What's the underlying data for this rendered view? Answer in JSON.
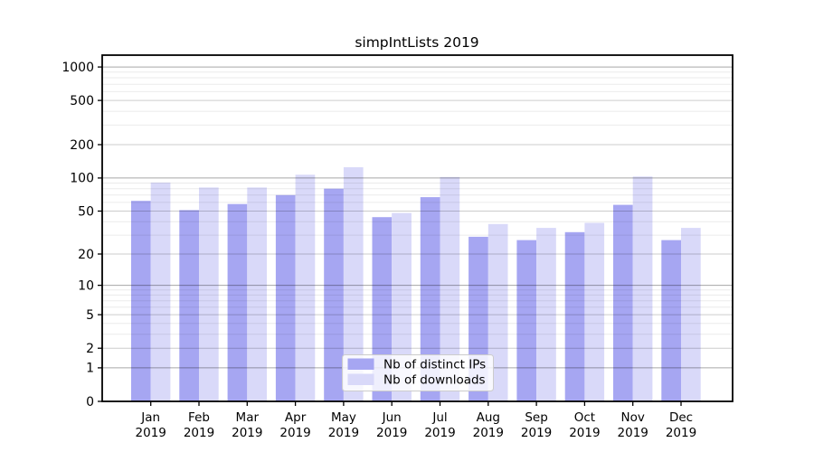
{
  "chart_data": {
    "type": "bar",
    "title": "simpIntLists 2019",
    "categories": [
      "Jan 2019",
      "Feb 2019",
      "Mar 2019",
      "Apr 2019",
      "May 2019",
      "Jun 2019",
      "Jul 2019",
      "Aug 2019",
      "Sep 2019",
      "Oct 2019",
      "Nov 2019",
      "Dec 2019"
    ],
    "months": [
      {
        "month": "Jan",
        "year": "2019"
      },
      {
        "month": "Feb",
        "year": "2019"
      },
      {
        "month": "Mar",
        "year": "2019"
      },
      {
        "month": "Apr",
        "year": "2019"
      },
      {
        "month": "May",
        "year": "2019"
      },
      {
        "month": "Jun",
        "year": "2019"
      },
      {
        "month": "Jul",
        "year": "2019"
      },
      {
        "month": "Aug",
        "year": "2019"
      },
      {
        "month": "Sep",
        "year": "2019"
      },
      {
        "month": "Oct",
        "year": "2019"
      },
      {
        "month": "Nov",
        "year": "2019"
      },
      {
        "month": "Dec",
        "year": "2019"
      }
    ],
    "series": [
      {
        "name": "Nb of distinct IPs",
        "color": "#a6a6f2",
        "values": [
          62,
          51,
          58,
          70,
          80,
          44,
          67,
          29,
          27,
          32,
          57,
          27
        ]
      },
      {
        "name": "Nb of downloads",
        "color": "#d9d9f9",
        "values": [
          91,
          82,
          82,
          107,
          125,
          48,
          102,
          38,
          35,
          39,
          103,
          35
        ]
      }
    ],
    "y_axis": {
      "scale": "log1p",
      "tick_values": [
        1000,
        500,
        200,
        100,
        50,
        20,
        10,
        5,
        2,
        1,
        0
      ],
      "tick_labels": [
        "1000",
        "500",
        "200",
        "100",
        "50",
        "20",
        "10",
        "5",
        "2",
        "1",
        "0"
      ],
      "major_gridlines": [
        1,
        10,
        100,
        1000
      ],
      "mid_gridlines": [
        2,
        5,
        20,
        50,
        200,
        500
      ],
      "minor_gridlines": [
        3,
        4,
        6,
        7,
        8,
        9,
        30,
        40,
        60,
        70,
        80,
        90,
        300,
        400,
        600,
        700,
        800,
        900
      ],
      "ylim": [
        0,
        1277
      ]
    },
    "legend": {
      "position": "lower center",
      "entries": [
        "Nb of distinct IPs",
        "Nb of downloads"
      ]
    },
    "grid": true,
    "colors": {
      "axis": "#000000",
      "grid_major": "rgba(0,0,0,0.35)",
      "grid_mid": "rgba(0,0,0,0.20)",
      "grid_minor": "rgba(0,0,0,0.08)",
      "legend_bg": "rgba(255,255,255,0.82)",
      "legend_border": "#cccccc",
      "background": "#ffffff"
    }
  }
}
